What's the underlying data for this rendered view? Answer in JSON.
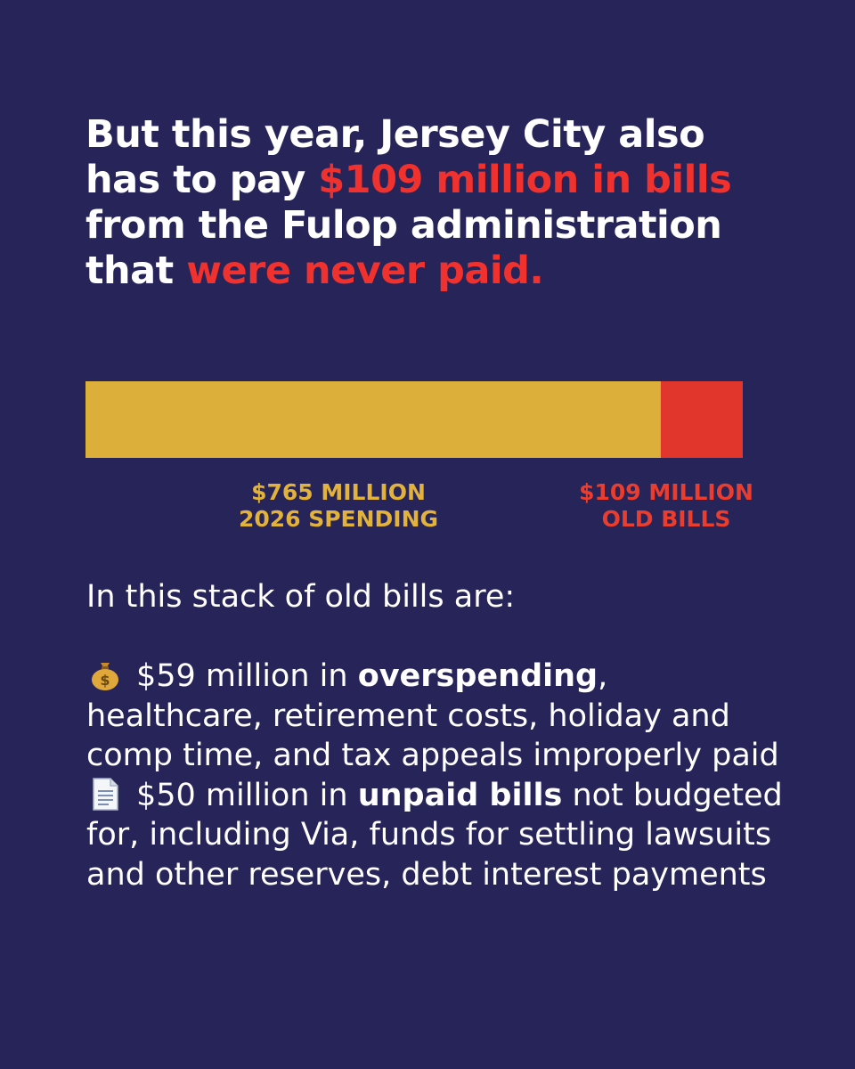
{
  "headline": {
    "parts": [
      {
        "text": "But this year, Jersey City also has to pay ",
        "highlight": false
      },
      {
        "text": "$109 million in bills",
        "highlight": true
      },
      {
        "text": " from the Fulop administration that ",
        "highlight": false
      },
      {
        "text": "were never paid.",
        "highlight": true
      }
    ]
  },
  "colors": {
    "background": "#27245a",
    "spending": "#dcaf3b",
    "old_bills": "#e0362b",
    "highlight_text": "#f0312d"
  },
  "chart_data": {
    "type": "bar",
    "orientation": "horizontal-stacked",
    "categories": [
      "2026 SPENDING",
      "OLD BILLS"
    ],
    "values": [
      765,
      109
    ],
    "unit": "million USD",
    "labels": [
      {
        "amount": "$765 MILLION",
        "caption": "2026 SPENDING"
      },
      {
        "amount": "$109 MILLION",
        "caption": "OLD BILLS"
      }
    ],
    "title": "",
    "xlabel": "",
    "ylabel": "",
    "grid": false
  },
  "body": {
    "intro": "In this stack of old bills are:",
    "items": [
      {
        "icon": "money-bag-icon",
        "pre": "$59 million in ",
        "bold": "overspending",
        "post": ", healthcare, retirement costs, holiday and comp time, and tax appeals improperly paid"
      },
      {
        "icon": "document-icon",
        "pre": "$50 million in ",
        "bold": "unpaid bills",
        "post": " not budgeted for, including Via, funds for settling lawsuits and other reserves, debt interest payments"
      }
    ]
  }
}
